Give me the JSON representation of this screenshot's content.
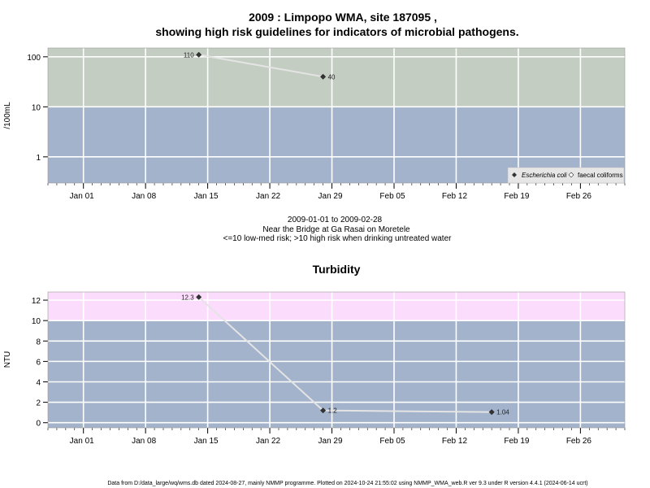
{
  "chart_data": [
    {
      "type": "line",
      "title_line1": "2009 : Limpopo WMA, site 187095 ,",
      "title_line2": "showing high risk guidelines for indicators of microbial pathogens.",
      "ylabel": "/100mL",
      "yscale": "log",
      "ylim": [
        0.3,
        150
      ],
      "yticks": [
        "1",
        "10",
        "100"
      ],
      "xlim": [
        "2008-12-28",
        "2009-03-03"
      ],
      "xticks": [
        "Jan 01",
        "Jan 08",
        "Jan 15",
        "Jan 22",
        "Jan 29",
        "Feb 05",
        "Feb 12",
        "Feb 19",
        "Feb 26"
      ],
      "bands": [
        {
          "from": 0.3,
          "to": 10,
          "color": "#a3b3cb"
        },
        {
          "from": 10,
          "to": 150,
          "color": "#c3cdc2"
        }
      ],
      "series": [
        {
          "name": "Escherichia coli",
          "marker": "filled-diamond",
          "x": [
            "2009-01-14",
            "2009-01-28"
          ],
          "y": [
            110,
            40
          ],
          "labels": [
            "110",
            "40"
          ]
        }
      ],
      "legend": {
        "position": "bottom-right",
        "items": [
          "Escherichia coli",
          "faecal coliforms"
        ]
      },
      "caption_lines": [
        "2009-01-01 to 2009-02-28",
        "Near the Bridge at Ga Rasai on Moretele",
        "<=10 low-med risk; >10 high risk when drinking untreated water"
      ]
    },
    {
      "type": "line",
      "title": "Turbidity",
      "ylabel": "NTU",
      "ylim": [
        -0.5,
        12.8
      ],
      "yticks": [
        0,
        2,
        4,
        6,
        8,
        10,
        12
      ],
      "xlim": [
        "2008-12-28",
        "2009-03-03"
      ],
      "xticks": [
        "Jan 01",
        "Jan 08",
        "Jan 15",
        "Jan 22",
        "Jan 29",
        "Feb 05",
        "Feb 12",
        "Feb 19",
        "Feb 26"
      ],
      "bands": [
        {
          "from": -0.5,
          "to": 10,
          "color": "#a3b3cb"
        },
        {
          "from": 10,
          "to": 12.8,
          "color": "#fcdcfc"
        }
      ],
      "series": [
        {
          "name": "",
          "marker": "filled-diamond",
          "x": [
            "2009-01-14",
            "2009-01-28",
            "2009-02-16"
          ],
          "y": [
            12.3,
            1.2,
            1.04
          ],
          "labels": [
            "12.3",
            "1.2",
            "1.04"
          ]
        }
      ]
    }
  ],
  "footer": "Data from D:/data_large/wq/wms.db dated 2024-08-27, mainly NMMP programme. Plotted on 2024-10-24 21:55:02 using NMMP_WMA_web.R ver 9.3 under R version 4.4.1 (2024-06-14 ucrt)"
}
